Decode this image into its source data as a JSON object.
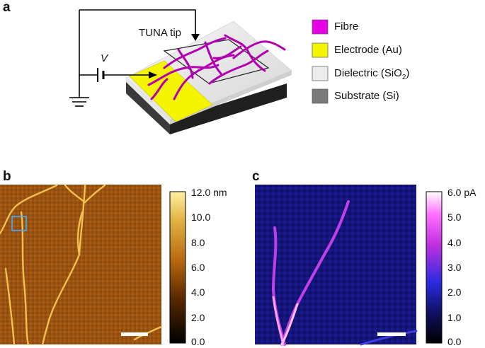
{
  "panels": {
    "a": {
      "letter": "a"
    },
    "b": {
      "letter": "b"
    },
    "c": {
      "letter": "c"
    }
  },
  "schematic": {
    "tip_label": "TUNA tip",
    "voltage_label": "V"
  },
  "legend": {
    "items": [
      {
        "label": "Fibre",
        "color": "#e600e6"
      },
      {
        "label": "Electrode (Au)",
        "color": "#f5f500"
      },
      {
        "label_main": "Dielectric (SiO",
        "label_sub": "2",
        "label_end": ")",
        "color": "#ececec"
      },
      {
        "label": "Substrate (Si)",
        "color": "#7a7a7a"
      }
    ]
  },
  "colorbar_b": {
    "ticks": [
      "12.0 nm",
      "10.0",
      "8.0",
      "6.0",
      "4.0",
      "2.0",
      "0.0"
    ],
    "colors": [
      "#000000",
      "#5a2a00",
      "#b86a10",
      "#e0b040",
      "#fff0a0"
    ]
  },
  "colorbar_c": {
    "ticks": [
      "6.0 pA",
      "5.0",
      "4.0",
      "3.0",
      "2.0",
      "1.0",
      "0.0"
    ],
    "colors": [
      "#000000",
      "#101060",
      "#2a2ae0",
      "#c030e0",
      "#ff70ff",
      "#ffffff"
    ]
  }
}
